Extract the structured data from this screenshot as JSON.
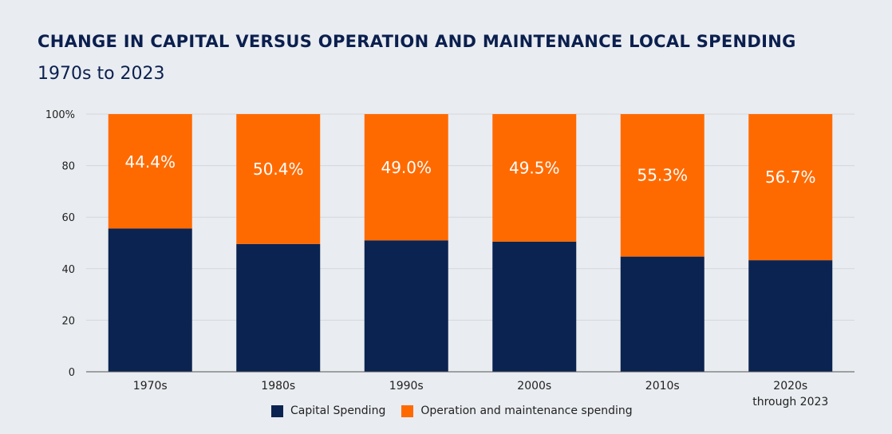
{
  "title": "CHANGE IN CAPITAL VERSUS OPERATION AND MAINTENANCE LOCAL SPENDING",
  "subtitle": "1970s to 2023",
  "colors": {
    "capital": "#0b2351",
    "om": "#ff6a00",
    "grid": "#d4d8de",
    "axis": "#555555"
  },
  "chart_data": {
    "type": "bar",
    "stacked": true,
    "categories": [
      "1970s",
      "1980s",
      "1990s",
      "2000s",
      "2010s",
      "2020s\nthrough 2023"
    ],
    "series": [
      {
        "name": "Capital Spending",
        "values": [
          55.6,
          49.6,
          51.0,
          50.5,
          44.7,
          43.3
        ]
      },
      {
        "name": "Operation and maintenance spending",
        "values": [
          44.4,
          50.4,
          49.0,
          49.5,
          55.3,
          56.7
        ]
      }
    ],
    "data_labels": [
      "44.4%",
      "50.4%",
      "49.0%",
      "49.5%",
      "55.3%",
      "56.7%"
    ],
    "ylim": [
      0,
      100
    ],
    "yticks": [
      "0",
      "20",
      "40",
      "60",
      "80",
      "100%"
    ],
    "ytick_values": [
      0,
      20,
      40,
      60,
      80,
      100
    ],
    "legend_position": "bottom"
  }
}
